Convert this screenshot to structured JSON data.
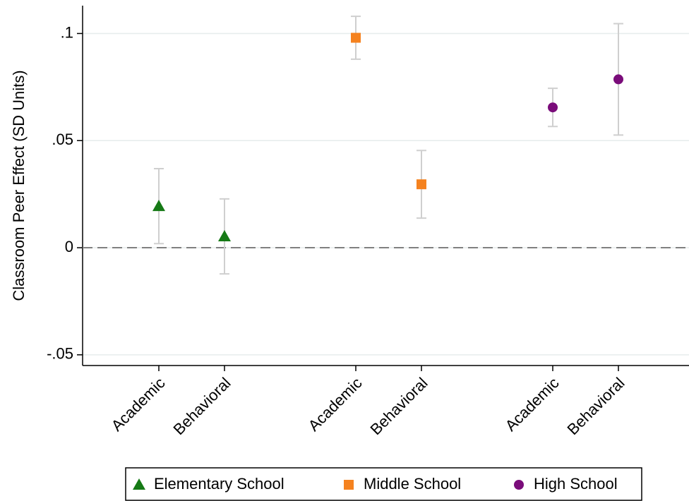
{
  "chart_data": {
    "type": "errorbar",
    "y_label": "Classroom Peer Effect (SD Units)",
    "categories": [
      "Academic",
      "Behavioral",
      null,
      "Academic",
      "Behavioral",
      null,
      "Academic",
      "Behavioral"
    ],
    "series": [
      {
        "name": "Elementary School",
        "color": "#167a16",
        "marker": "triangle",
        "values": [
          0.0194,
          0.0053,
          null,
          null,
          null,
          null,
          null,
          null
        ],
        "errors": [
          0.0175,
          0.0175,
          null,
          null,
          null,
          null,
          null,
          null
        ]
      },
      {
        "name": "Middle School",
        "color": "#f5821f",
        "marker": "square",
        "values": [
          null,
          null,
          null,
          0.098,
          0.0296,
          null,
          null,
          null
        ],
        "errors": [
          null,
          null,
          null,
          0.01,
          0.0158,
          null,
          null,
          null
        ]
      },
      {
        "name": "High School",
        "color": "#7a0c7a",
        "marker": "circle",
        "values": [
          null,
          null,
          null,
          null,
          null,
          null,
          0.0655,
          0.0786
        ],
        "errors": [
          null,
          null,
          null,
          null,
          null,
          null,
          0.0089,
          0.026
        ]
      }
    ],
    "ylim": [
      -0.055,
      0.113
    ],
    "yticks": [
      {
        "value": -0.05,
        "label": "-.05"
      },
      {
        "value": 0,
        "label": "0"
      },
      {
        "value": 0.05,
        "label": ".05"
      },
      {
        "value": 0.1,
        "label": ".1"
      }
    ],
    "grid": true,
    "reference_line": 0,
    "legend": "bottom"
  }
}
